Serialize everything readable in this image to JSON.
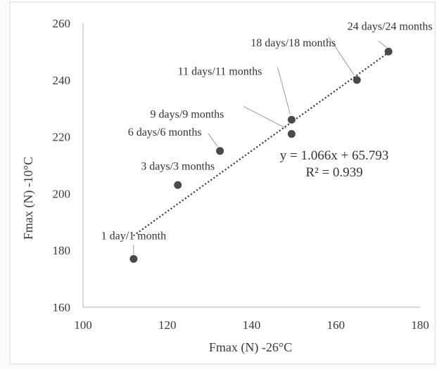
{
  "chart_data": {
    "type": "scatter",
    "xlabel": "Fmax (N) -26°C",
    "ylabel": "Fmax (N) -10°C",
    "xlim": [
      100,
      180
    ],
    "ylim": [
      160,
      260
    ],
    "x_ticks": [
      100,
      120,
      140,
      160,
      180
    ],
    "y_ticks": [
      160,
      180,
      200,
      220,
      240,
      260
    ],
    "x_tick_labels": [
      "100",
      "120",
      "140",
      "160",
      "180"
    ],
    "y_tick_labels": [
      "160",
      "180",
      "200",
      "220",
      "240",
      "260"
    ],
    "grid": false,
    "points": [
      {
        "label": "1 day/1 month",
        "x": 112,
        "y": 177
      },
      {
        "label": "3 days/3 months",
        "x": 122.5,
        "y": 203
      },
      {
        "label": "6 days/6 months",
        "x": 132.5,
        "y": 215
      },
      {
        "label": "9 days/9 months",
        "x": 149.5,
        "y": 221
      },
      {
        "label": "11 days/11 months",
        "x": 149.5,
        "y": 226
      },
      {
        "label": "18 days/18 months",
        "x": 165,
        "y": 240
      },
      {
        "label": "24 days/24 months",
        "x": 172.5,
        "y": 250
      }
    ],
    "trendline": {
      "type": "linear",
      "slope": 1.066,
      "intercept": 65.793,
      "x_range": [
        112,
        172.5
      ],
      "equation": "y = 1.066x + 65.793",
      "r_squared": "R² = 0.939"
    },
    "colors": {
      "point": "#4a4a4a",
      "trendline": "#333333",
      "axis": "#bdbdbd",
      "border": "#d9d9d9"
    }
  }
}
